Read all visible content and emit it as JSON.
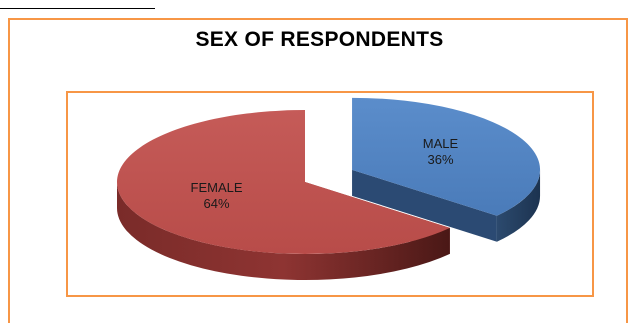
{
  "chart_data": {
    "type": "pie",
    "title": "SEX OF RESPONDENTS",
    "slices": [
      {
        "label": "MALE",
        "value": 36,
        "display": "36%",
        "color": "#4f81bd",
        "exploded": true
      },
      {
        "label": "FEMALE",
        "value": 64,
        "display": "64%",
        "color": "#c0504d",
        "exploded": false
      }
    ],
    "style": "3d-exploded"
  }
}
